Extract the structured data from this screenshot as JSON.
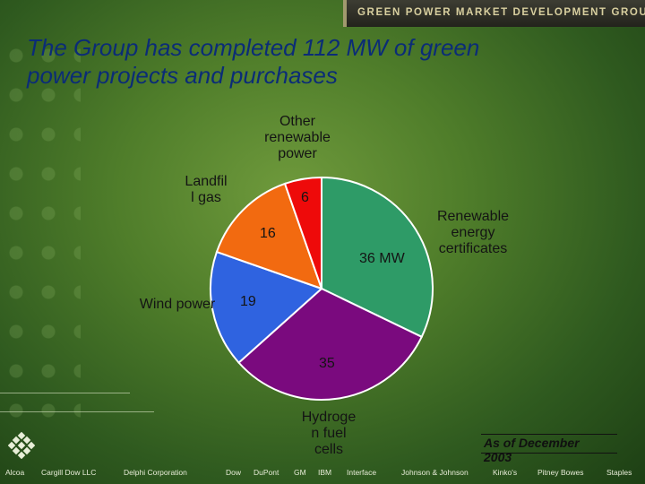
{
  "banner": "GREEN POWER MARKET DEVELOPMENT GROUP",
  "title_line1": "The Group has completed 112 MW of green",
  "title_line2": "power projects and purchases",
  "chart_data": {
    "type": "pie",
    "slices": [
      {
        "label": "Renewable energy certificates",
        "value": 36,
        "value_label": "36 MW",
        "color": "#2e9b67"
      },
      {
        "label": "Hydrogen fuel cells",
        "value": 35,
        "value_label": "35",
        "color": "#7a0a7e"
      },
      {
        "label": "Wind power",
        "value": 19,
        "value_label": "19",
        "color": "#2f63e0"
      },
      {
        "label": "Landfill gas",
        "value": 16,
        "value_label": "16",
        "color": "#f26a10"
      },
      {
        "label": "Other renewable power",
        "value": 6,
        "value_label": "6",
        "color": "#ee0a0a"
      }
    ],
    "total": 112,
    "unit": "MW"
  },
  "labels": {
    "other": [
      "Other",
      "renewable",
      "power"
    ],
    "landfill": [
      "Landfil",
      "l gas"
    ],
    "rec": [
      "Renewable",
      "energy",
      "certificates"
    ],
    "wind": "Wind power",
    "hydrogen": [
      "Hydroge",
      "n fuel",
      "cells"
    ]
  },
  "as_of_line1": "As of December",
  "as_of_line2": "2003",
  "footer": [
    "Alcoa",
    "Cargill Dow LLC",
    "Delphi Corporation",
    "Dow",
    "DuPont",
    "GM",
    "IBM",
    "Interface",
    "Johnson & Johnson",
    "Kinko's",
    "Pitney Bowes",
    "Staples"
  ]
}
